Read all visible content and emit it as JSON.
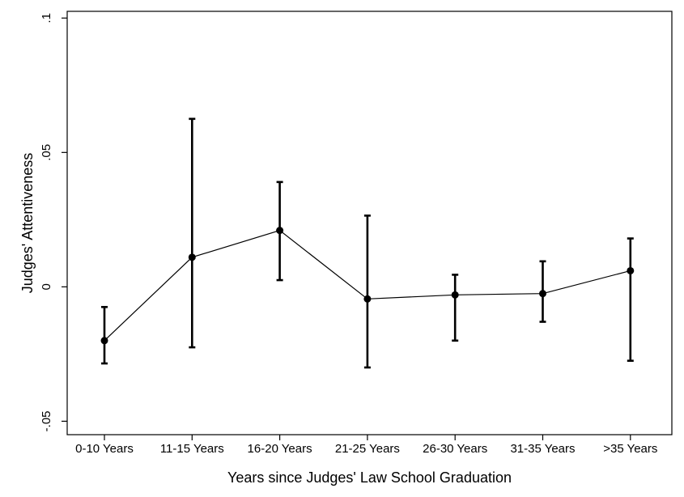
{
  "chart_data": {
    "type": "line",
    "title": "",
    "xlabel": "Years since Judges' Law School Graduation",
    "ylabel": "Judges' Attentiveness",
    "categories": [
      "0-10 Years",
      "11-15 Years",
      "16-20 Years",
      "21-25 Years",
      "26-30 Years",
      "31-35 Years",
      ">35 Years"
    ],
    "ylim": [
      -0.055,
      0.1025
    ],
    "yticks": [
      -0.05,
      0,
      0.05,
      0.1
    ],
    "ytick_labels": [
      "-.05",
      "0",
      ".05",
      ".1"
    ],
    "series": [
      {
        "values": [
          -0.02,
          0.011,
          0.021,
          -0.0045,
          -0.003,
          -0.0025,
          0.006
        ],
        "lower": [
          -0.0285,
          -0.0225,
          0.0025,
          -0.03,
          -0.02,
          -0.013,
          -0.0275
        ],
        "upper": [
          -0.0075,
          0.0625,
          0.039,
          0.0265,
          0.0045,
          0.0095,
          0.018
        ]
      }
    ],
    "grid": false,
    "legend": "none",
    "colors": {
      "line": "#000000",
      "axis": "#000000",
      "background": "#ffffff"
    }
  }
}
